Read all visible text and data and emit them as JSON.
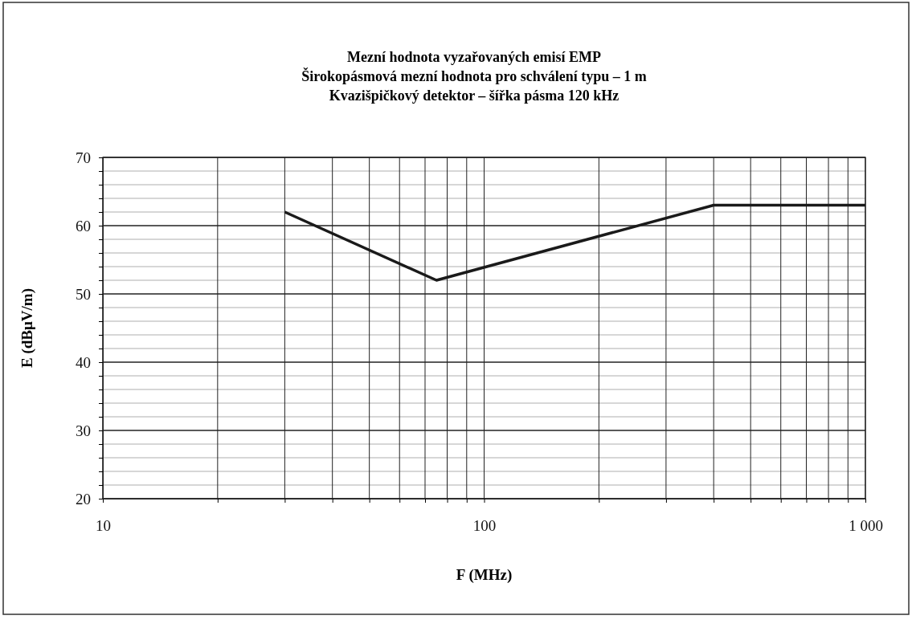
{
  "chart_data": {
    "type": "line",
    "title": "Mezní hodnota vyzařovaných emisí EMP\nŠirokopásmová mezní hodnota pro schválení typu – 1 m\nKvazišpičkový detektor – šířka pásma 120 kHz",
    "xlabel": "F (MHz)",
    "ylabel": "E (dBμV/m)",
    "log": "x",
    "xlim": [
      10,
      1000
    ],
    "xticks": [
      10,
      {
        "value": 20,
        "label": null
      },
      {
        "value": 30,
        "label": null
      },
      {
        "value": 40,
        "label": null
      },
      {
        "value": 50,
        "label": null
      },
      {
        "value": 60,
        "label": null
      },
      {
        "value": 70,
        "label": null
      },
      {
        "value": 80,
        "label": null
      },
      {
        "value": 90,
        "label": null
      },
      100,
      {
        "value": 200,
        "label": null
      },
      {
        "value": 300,
        "label": null
      },
      {
        "value": 400,
        "label": null
      },
      {
        "value": 500,
        "label": null
      },
      {
        "value": 600,
        "label": null
      },
      {
        "value": 700,
        "label": null
      },
      {
        "value": 800,
        "label": null
      },
      {
        "value": 900,
        "label": null
      },
      {
        "value": 1000,
        "label": "1 000"
      }
    ],
    "ylim": [
      20,
      70
    ],
    "yticks": [
      20,
      {
        "value": 22,
        "label": null
      },
      {
        "value": 24,
        "label": null
      },
      {
        "value": 26,
        "label": null
      },
      {
        "value": 28,
        "label": null
      },
      30,
      {
        "value": 32,
        "label": null
      },
      {
        "value": 34,
        "label": null
      },
      {
        "value": 36,
        "label": null
      },
      {
        "value": 38,
        "label": null
      },
      40,
      {
        "value": 42,
        "label": null
      },
      {
        "value": 44,
        "label": null
      },
      {
        "value": 46,
        "label": null
      },
      {
        "value": 48,
        "label": null
      },
      50,
      {
        "value": 52,
        "label": null
      },
      {
        "value": 54,
        "label": null
      },
      {
        "value": 56,
        "label": null
      },
      {
        "value": 58,
        "label": null
      },
      60,
      {
        "value": 62,
        "label": null
      },
      {
        "value": 64,
        "label": null
      },
      {
        "value": 66,
        "label": null
      },
      {
        "value": 68,
        "label": null
      },
      70
    ],
    "grid": true,
    "marker": "none",
    "line_style": "solid",
    "series": [
      {
        "x": [
          30,
          75,
          400,
          1000
        ],
        "values": [
          62,
          52,
          63,
          63
        ],
        "color": "#1a1a1a"
      }
    ]
  }
}
